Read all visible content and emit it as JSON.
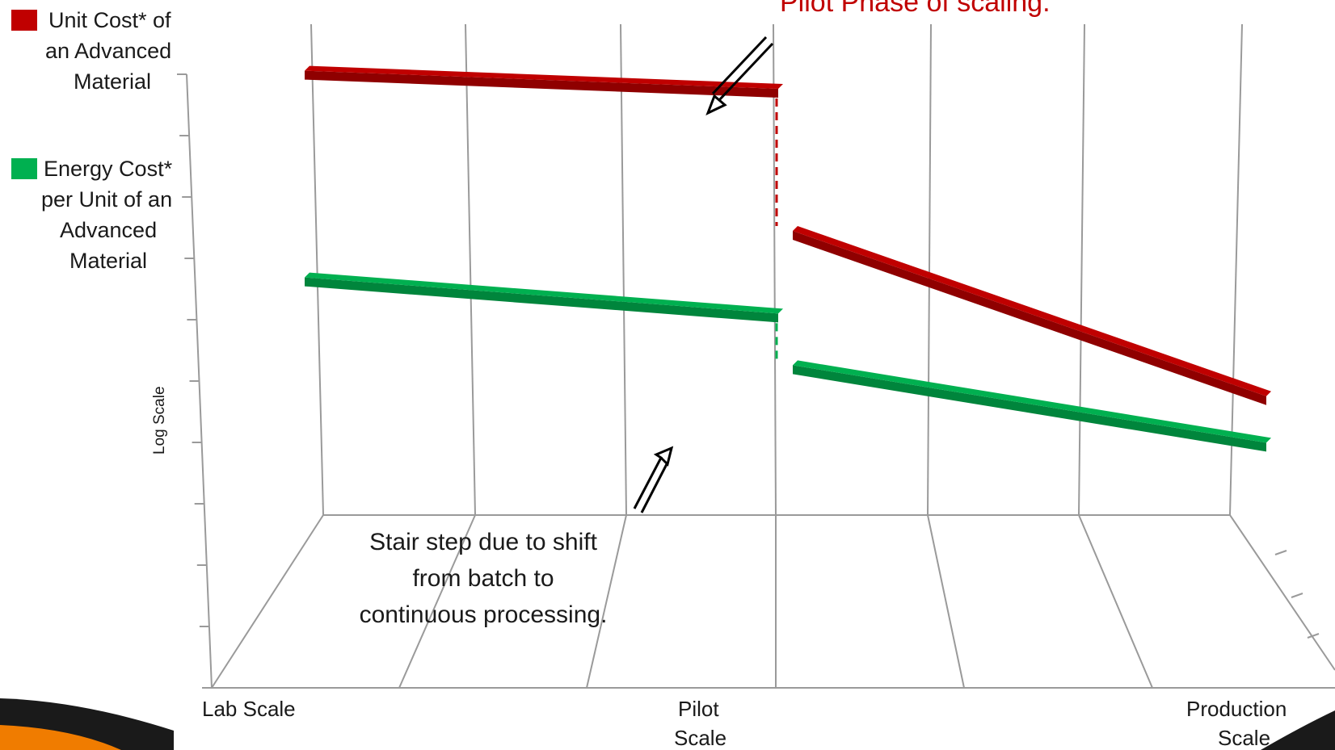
{
  "chart_data": {
    "type": "line",
    "title_partial": "Pilot Phase of scaling.",
    "ylabel": "Log Scale",
    "y_scale": "log",
    "categories": [
      "Lab Scale",
      "",
      "",
      "Pilot Scale",
      "",
      "",
      "Production Scale"
    ],
    "x_tick_labels": [
      {
        "lines": [
          "Lab Scale"
        ]
      },
      {
        "lines": [
          "Pilot",
          "Scale"
        ]
      },
      {
        "lines": [
          "Production",
          "Scale"
        ]
      }
    ],
    "legend_placement": "left",
    "series": [
      {
        "name": "Unit Cost* of an Advanced Material",
        "legend_lines": [
          "Unit Cost* of",
          "an Advanced",
          "Material"
        ],
        "color": "#c00000",
        "segments": [
          {
            "x": [
              0.0,
              3.0
            ],
            "y": [
              8.6,
              8.25
            ]
          },
          {
            "x": [
              3.0,
              6.0
            ],
            "y": [
              5.5,
              2.3
            ]
          }
        ],
        "step_connector": "dashed"
      },
      {
        "name": "Energy Cost* per Unit of an Advanced Material",
        "legend_lines": [
          "Energy Cost*",
          "per Unit of an",
          "Advanced",
          "Material"
        ],
        "color": "#00b050",
        "segments": [
          {
            "x": [
              0.0,
              3.0
            ],
            "y": [
              4.6,
              3.9
            ]
          },
          {
            "x": [
              3.0,
              6.0
            ],
            "y": [
              2.9,
              1.4
            ]
          }
        ],
        "step_connector": "dashed"
      }
    ],
    "annotations": [
      {
        "text_lines": [
          "Stair step due to shift",
          "from batch to",
          "continuous processing."
        ]
      }
    ],
    "grid": true,
    "accent_colors": {
      "orange_band": "#f07c00",
      "dark_band": "#1a1a1a"
    }
  }
}
